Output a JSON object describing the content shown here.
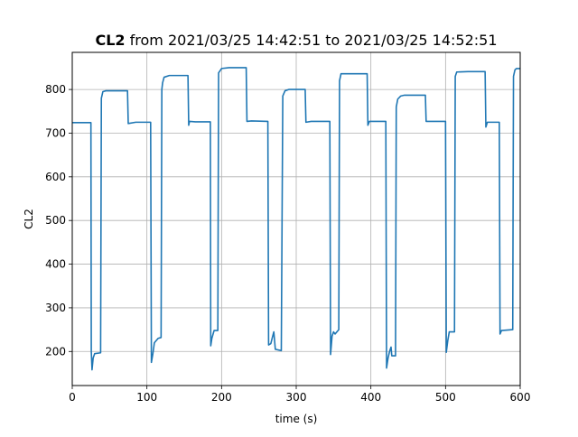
{
  "chart_data": {
    "type": "line",
    "title_bold": "CL2",
    "title_rest": " from 2021/03/25 14:42:51 to 2021/03/25 14:52:51",
    "xlabel": "time (s)",
    "ylabel": "CL2",
    "xlim": [
      0,
      600
    ],
    "ylim": [
      122,
      885
    ],
    "xticks": [
      0,
      100,
      200,
      300,
      400,
      500,
      600
    ],
    "yticks": [
      200,
      300,
      400,
      500,
      600,
      700,
      800
    ],
    "grid": true,
    "series": [
      {
        "color": "#1f77b4",
        "points": [
          [
            0,
            724
          ],
          [
            25,
            724
          ],
          [
            25.5,
            200
          ],
          [
            26.5,
            158
          ],
          [
            28,
            185
          ],
          [
            30,
            195
          ],
          [
            38,
            197
          ],
          [
            39,
            780
          ],
          [
            41,
            795
          ],
          [
            45,
            797
          ],
          [
            60,
            797
          ],
          [
            74,
            797
          ],
          [
            75,
            722
          ],
          [
            85,
            725
          ],
          [
            105,
            725
          ],
          [
            106,
            175
          ],
          [
            108,
            195
          ],
          [
            110,
            220
          ],
          [
            115,
            230
          ],
          [
            119,
            232
          ],
          [
            120,
            800
          ],
          [
            121,
            815
          ],
          [
            123,
            828
          ],
          [
            130,
            832
          ],
          [
            155,
            832
          ],
          [
            156,
            718
          ],
          [
            157,
            727
          ],
          [
            165,
            726
          ],
          [
            185,
            726
          ],
          [
            185.5,
            213
          ],
          [
            187,
            230
          ],
          [
            190,
            248
          ],
          [
            195,
            248
          ],
          [
            196,
            838
          ],
          [
            200,
            848
          ],
          [
            210,
            850
          ],
          [
            233,
            850
          ],
          [
            234,
            727
          ],
          [
            240,
            728
          ],
          [
            262,
            727
          ],
          [
            263,
            215
          ],
          [
            266,
            218
          ],
          [
            268,
            232
          ],
          [
            270,
            245
          ],
          [
            272,
            205
          ],
          [
            280,
            202
          ],
          [
            282,
            785
          ],
          [
            285,
            797
          ],
          [
            290,
            800
          ],
          [
            312,
            800
          ],
          [
            313,
            725
          ],
          [
            320,
            727
          ],
          [
            345,
            727
          ],
          [
            346,
            193
          ],
          [
            348,
            235
          ],
          [
            350,
            245
          ],
          [
            352,
            240
          ],
          [
            357,
            250
          ],
          [
            358,
            820
          ],
          [
            360,
            836
          ],
          [
            370,
            836
          ],
          [
            395,
            836
          ],
          [
            396,
            718
          ],
          [
            398,
            727
          ],
          [
            420,
            727
          ],
          [
            421,
            162
          ],
          [
            423,
            185
          ],
          [
            425,
            200
          ],
          [
            427,
            210
          ],
          [
            428,
            190
          ],
          [
            433,
            190
          ],
          [
            434,
            760
          ],
          [
            436,
            778
          ],
          [
            440,
            785
          ],
          [
            445,
            787
          ],
          [
            473,
            787
          ],
          [
            474,
            727
          ],
          [
            480,
            727
          ],
          [
            500,
            727
          ],
          [
            501,
            198
          ],
          [
            503,
            225
          ],
          [
            505,
            245
          ],
          [
            512,
            245
          ],
          [
            513,
            830
          ],
          [
            515,
            840
          ],
          [
            530,
            841
          ],
          [
            553,
            841
          ],
          [
            554,
            714
          ],
          [
            556,
            725
          ],
          [
            572,
            725
          ],
          [
            573,
            240
          ],
          [
            575,
            248
          ],
          [
            590,
            250
          ],
          [
            591,
            830
          ],
          [
            593,
            845
          ],
          [
            595,
            848
          ],
          [
            600,
            848
          ]
        ]
      }
    ]
  }
}
